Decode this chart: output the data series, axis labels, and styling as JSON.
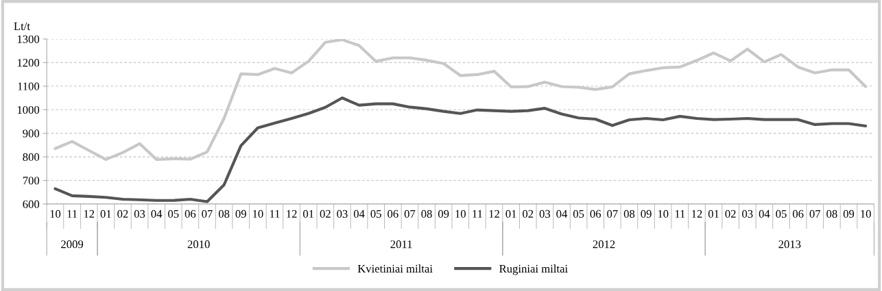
{
  "chart_data": {
    "type": "line",
    "ylabel": "Lt/t",
    "categories": [
      "10",
      "11",
      "12",
      "01",
      "02",
      "03",
      "04",
      "05",
      "06",
      "07",
      "08",
      "09",
      "10",
      "11",
      "12",
      "01",
      "02",
      "03",
      "04",
      "05",
      "06",
      "07",
      "08",
      "09",
      "10",
      "11",
      "12",
      "01",
      "02",
      "03",
      "04",
      "05",
      "06",
      "07",
      "08",
      "09",
      "10",
      "11",
      "12",
      "01",
      "02",
      "03",
      "04",
      "05",
      "06",
      "07",
      "08",
      "09",
      "10"
    ],
    "annotations": [
      "2009",
      "2010",
      "2011",
      "2012",
      "2013"
    ],
    "series": [
      {
        "name": "Kvietiniai miltai",
        "color": "#c8c8c8",
        "values": [
          835,
          865,
          827,
          789,
          818,
          856,
          789,
          792,
          790,
          821,
          963,
          1152,
          1149,
          1175,
          1156,
          1205,
          1286,
          1297,
          1272,
          1205,
          1220,
          1220,
          1210,
          1196,
          1145,
          1149,
          1163,
          1097,
          1098,
          1117,
          1098,
          1095,
          1086,
          1097,
          1152,
          1166,
          1178,
          1181,
          1209,
          1241,
          1207,
          1257,
          1203,
          1234,
          1181,
          1156,
          1169,
          1169,
          1098
        ]
      },
      {
        "name": "Ruginiai miltai",
        "color": "#555555",
        "values": [
          665,
          635,
          632,
          628,
          620,
          618,
          615,
          615,
          620,
          610,
          681,
          847,
          923,
          943,
          963,
          984,
          1010,
          1050,
          1019,
          1025,
          1025,
          1011,
          1004,
          993,
          984,
          999,
          996,
          993,
          996,
          1006,
          982,
          965,
          960,
          933,
          957,
          963,
          957,
          972,
          963,
          958,
          960,
          963,
          958,
          958,
          958,
          937,
          941,
          941,
          931
        ]
      }
    ],
    "ylim": [
      600,
      1300
    ],
    "yticks": [
      600,
      700,
      800,
      900,
      1000,
      1100,
      1200,
      1300
    ],
    "grid": "y",
    "legend": "bottom",
    "line_style": "solid",
    "marker": "none"
  }
}
